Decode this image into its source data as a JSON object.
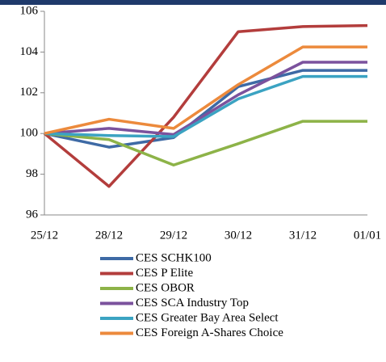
{
  "chart_data": {
    "type": "line",
    "categories": [
      "25/12",
      "28/12",
      "29/12",
      "30/12",
      "31/12",
      "01/01"
    ],
    "series": [
      {
        "name": "CES SCHK100",
        "color": "#3e6aa5",
        "values": [
          100,
          99.33,
          99.8,
          102.3,
          103.1,
          103.1
        ]
      },
      {
        "name": "CES P Elite",
        "color": "#b33d3c",
        "values": [
          100,
          97.4,
          100.8,
          105.0,
          105.25,
          105.3
        ]
      },
      {
        "name": "CES OBOR",
        "color": "#8db348",
        "values": [
          100,
          99.7,
          98.45,
          99.5,
          100.6,
          100.6
        ]
      },
      {
        "name": "CES SCA Industry Top",
        "color": "#7b529d",
        "values": [
          100,
          100.25,
          99.95,
          101.9,
          103.5,
          103.5
        ]
      },
      {
        "name": "CES Greater Bay Area Select",
        "color": "#3ba3c2",
        "values": [
          100,
          99.9,
          99.85,
          101.7,
          102.8,
          102.8
        ]
      },
      {
        "name": "CES Foreign A-Shares Choice",
        "color": "#ec8a3c",
        "values": [
          100,
          100.7,
          100.25,
          102.4,
          104.25,
          104.25
        ]
      }
    ],
    "ylim": [
      96,
      106
    ],
    "yticks": [
      96,
      98,
      100,
      102,
      104,
      106
    ]
  }
}
